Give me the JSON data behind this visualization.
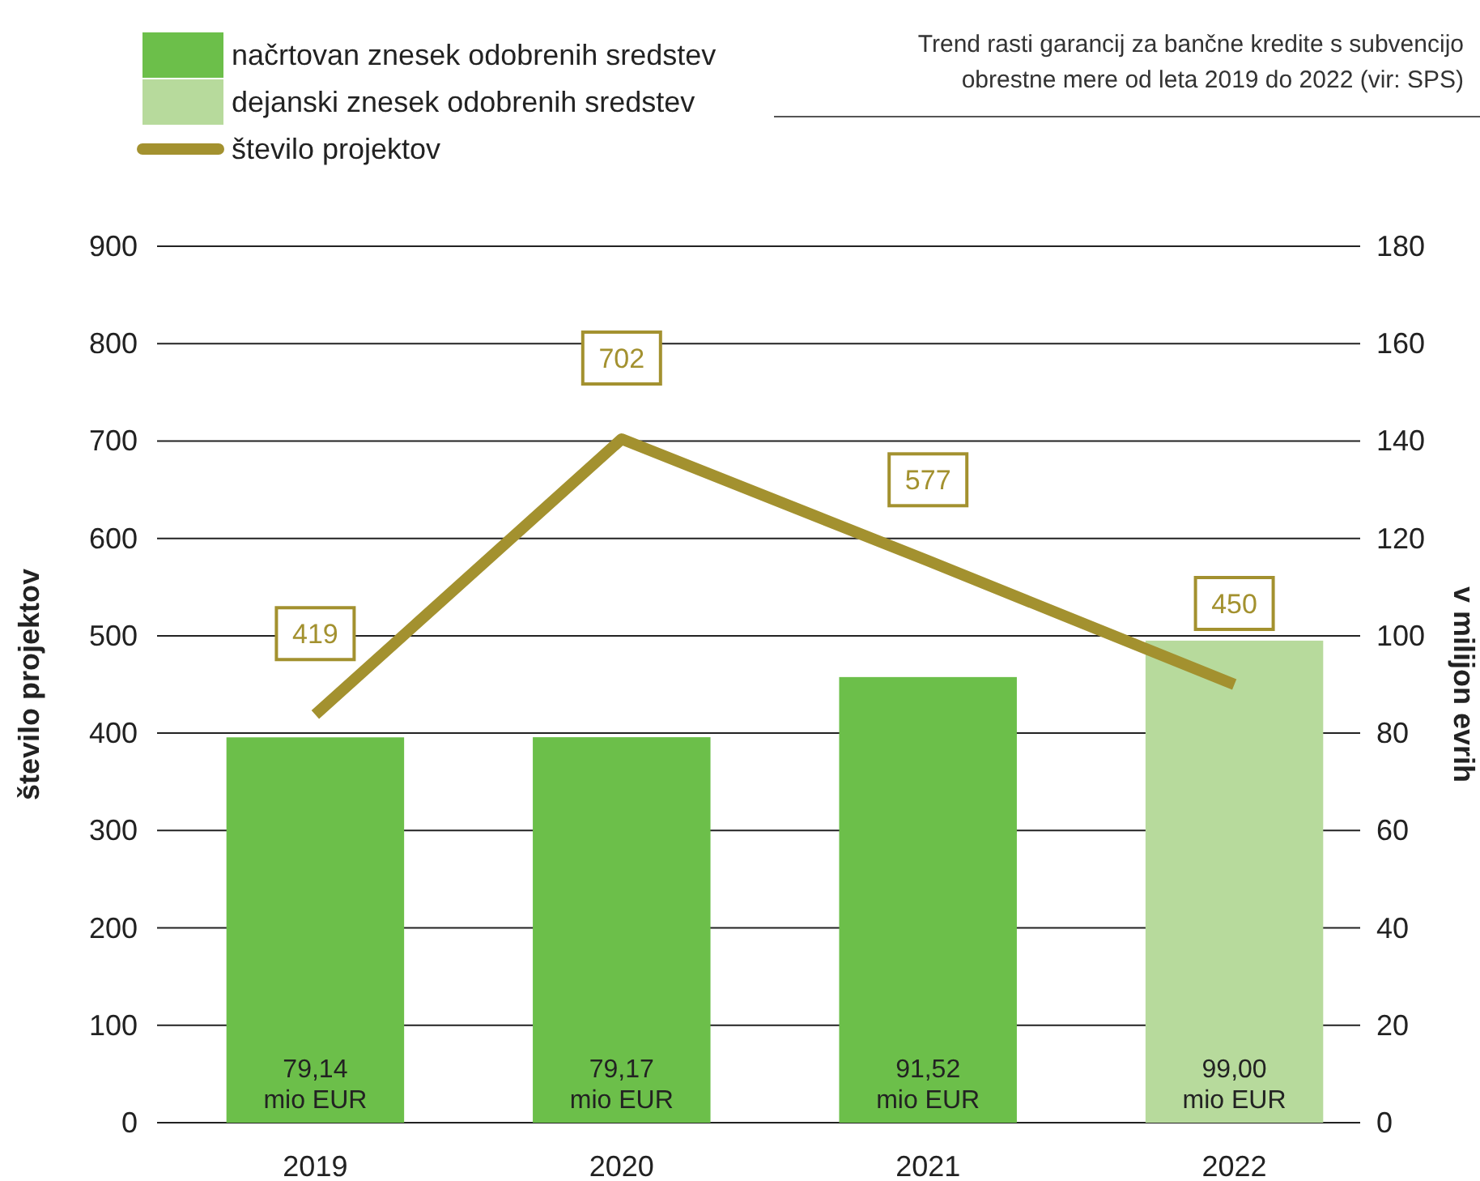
{
  "chart_data": {
    "type": "bar",
    "title": "Trend rasti garancij za bančne kredite s subvencijo obrestne mere od leta 2019 do 2022 (vir: SPS)",
    "categories": [
      "2019",
      "2020",
      "2021",
      "2022"
    ],
    "ylabel": "število projektov",
    "y2label": "v milijon evrih",
    "ylim": [
      0,
      900
    ],
    "yticks": [
      0,
      100,
      200,
      300,
      400,
      500,
      600,
      700,
      800,
      900
    ],
    "y2lim": [
      0,
      180
    ],
    "y2ticks": [
      0,
      20,
      40,
      60,
      80,
      100,
      120,
      140,
      160,
      180
    ],
    "grid": "y",
    "legend": "top left",
    "series": [
      {
        "name": "načrtovan znesek odobrenih sredstev",
        "axis": "y2",
        "color": "#6cbf4a",
        "values": [
          79.14,
          79.17,
          91.52,
          null
        ],
        "value_labels": [
          "79,14 mio EUR",
          "79,17 mio EUR",
          "91,52 mio EUR",
          null
        ]
      },
      {
        "name": "dejanski znesek odobrenih sredstev",
        "axis": "y2",
        "color": "#b7da9c",
        "values": [
          null,
          null,
          null,
          99.0
        ],
        "value_labels": [
          null,
          null,
          null,
          "99,00 mio EUR"
        ]
      },
      {
        "name": "število projektov",
        "type": "line",
        "axis": "y",
        "color": "#a3912f",
        "values": [
          419,
          702,
          577,
          450
        ],
        "value_labels": [
          "419",
          "702",
          "577",
          "450"
        ]
      }
    ]
  }
}
